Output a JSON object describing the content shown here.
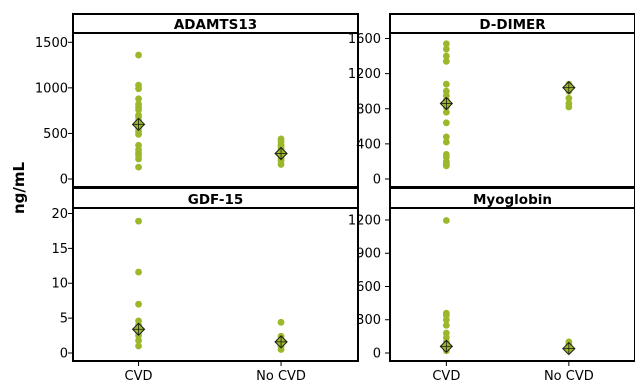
{
  "colors": {
    "point": "#9bb82b",
    "mean_marker_stroke": "#1a1a1a",
    "frame": "#000000",
    "background": "#ffffff"
  },
  "chart_data": {
    "type": "scatter",
    "ylabel": "ng/mL",
    "categories": [
      "CVD",
      "No CVD"
    ],
    "panels": [
      {
        "title": "ADAMTS13",
        "ylim": [
          0,
          1580
        ],
        "yticks": [
          0,
          500,
          1000,
          1500
        ],
        "groups": [
          {
            "category": "CVD",
            "values": [
              130,
              220,
              260,
              290,
              320,
              370,
              490,
              520,
              560,
              600,
              640,
              680,
              700,
              760,
              790,
              820,
              880,
              990,
              1030,
              1360
            ],
            "mean": 600
          },
          {
            "category": "No CVD",
            "values": [
              160,
              200,
              220,
              250,
              270,
              300,
              330,
              360,
              380,
              410,
              440
            ],
            "mean": 280
          }
        ]
      },
      {
        "title": "D-DIMER",
        "ylim": [
          0,
          1640
        ],
        "yticks": [
          0,
          400,
          800,
          1200,
          1600
        ],
        "groups": [
          {
            "category": "CVD",
            "values": [
              150,
              170,
              180,
              200,
              250,
              280,
              420,
              480,
              640,
              760,
              820,
              900,
              950,
              1000,
              1080,
              1340,
              1400,
              1480,
              1540
            ],
            "mean": 860
          },
          {
            "category": "No CVD",
            "values": [
              820,
              860,
              920,
              1000,
              1050,
              1080
            ],
            "mean": 1040
          }
        ]
      },
      {
        "title": "GDF-15",
        "ylim": [
          0,
          20.5
        ],
        "yticks": [
          0,
          5,
          10,
          15,
          20
        ],
        "groups": [
          {
            "category": "CVD",
            "values": [
              1.0,
              1.8,
              2.5,
              3.0,
              3.5,
              4.0,
              4.6,
              7.0,
              11.6,
              18.9
            ],
            "mean": 3.4
          },
          {
            "category": "No CVD",
            "values": [
              0.5,
              0.9,
              1.2,
              1.6,
              2.0,
              2.4,
              4.4
            ],
            "mean": 1.6
          }
        ]
      },
      {
        "title": "Myoglobin",
        "ylim": [
          0,
          1290
        ],
        "yticks": [
          0,
          300,
          600,
          900,
          1200
        ],
        "groups": [
          {
            "category": "CVD",
            "values": [
              20,
              40,
              60,
              100,
              140,
              180,
              250,
              300,
              340,
              360,
              1195
            ],
            "mean": 60
          },
          {
            "category": "No CVD",
            "values": [
              20,
              30,
              45,
              60,
              80,
              100
            ],
            "mean": 40
          }
        ]
      }
    ]
  }
}
